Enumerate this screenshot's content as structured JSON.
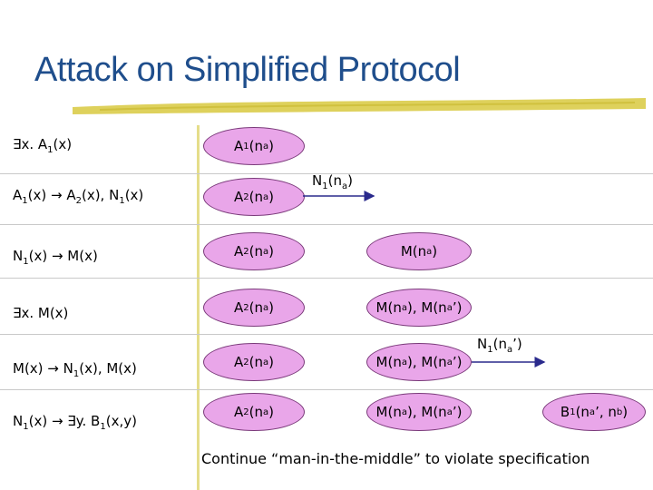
{
  "title": "Attack on Simplified Protocol",
  "rules": [
    {
      "pre": "∃x. A",
      "sub": "1",
      "post": "(x)"
    },
    {
      "html": "A<sub>1</sub>(x) → A<sub>2</sub>(x), N<sub>1</sub>(x)"
    },
    {
      "html": "N<sub>1</sub>(x) → M(x)"
    },
    {
      "html": "∃x. M(x)"
    },
    {
      "html": "M(x) → N<sub>1</sub>(x), M(x)"
    },
    {
      "html": "N<sub>1</sub>(x) → ∃y. B<sub>1</sub>(x,y)"
    }
  ],
  "nodes": {
    "a1": "A1(na)",
    "a2": "A2(na)",
    "m1": "M(na)",
    "m2": "M(na), M(na’)",
    "b1": "B1(na’, nb)"
  },
  "messages": {
    "n1_na": "N1(na)",
    "n1_na_prime": "N1(na’)"
  },
  "footer": "Continue “man-in-the-middle” to violate specification",
  "colors": {
    "title": "#1f4e8c",
    "ellipse": "#e9a6e9",
    "underline": "#d8c940"
  }
}
